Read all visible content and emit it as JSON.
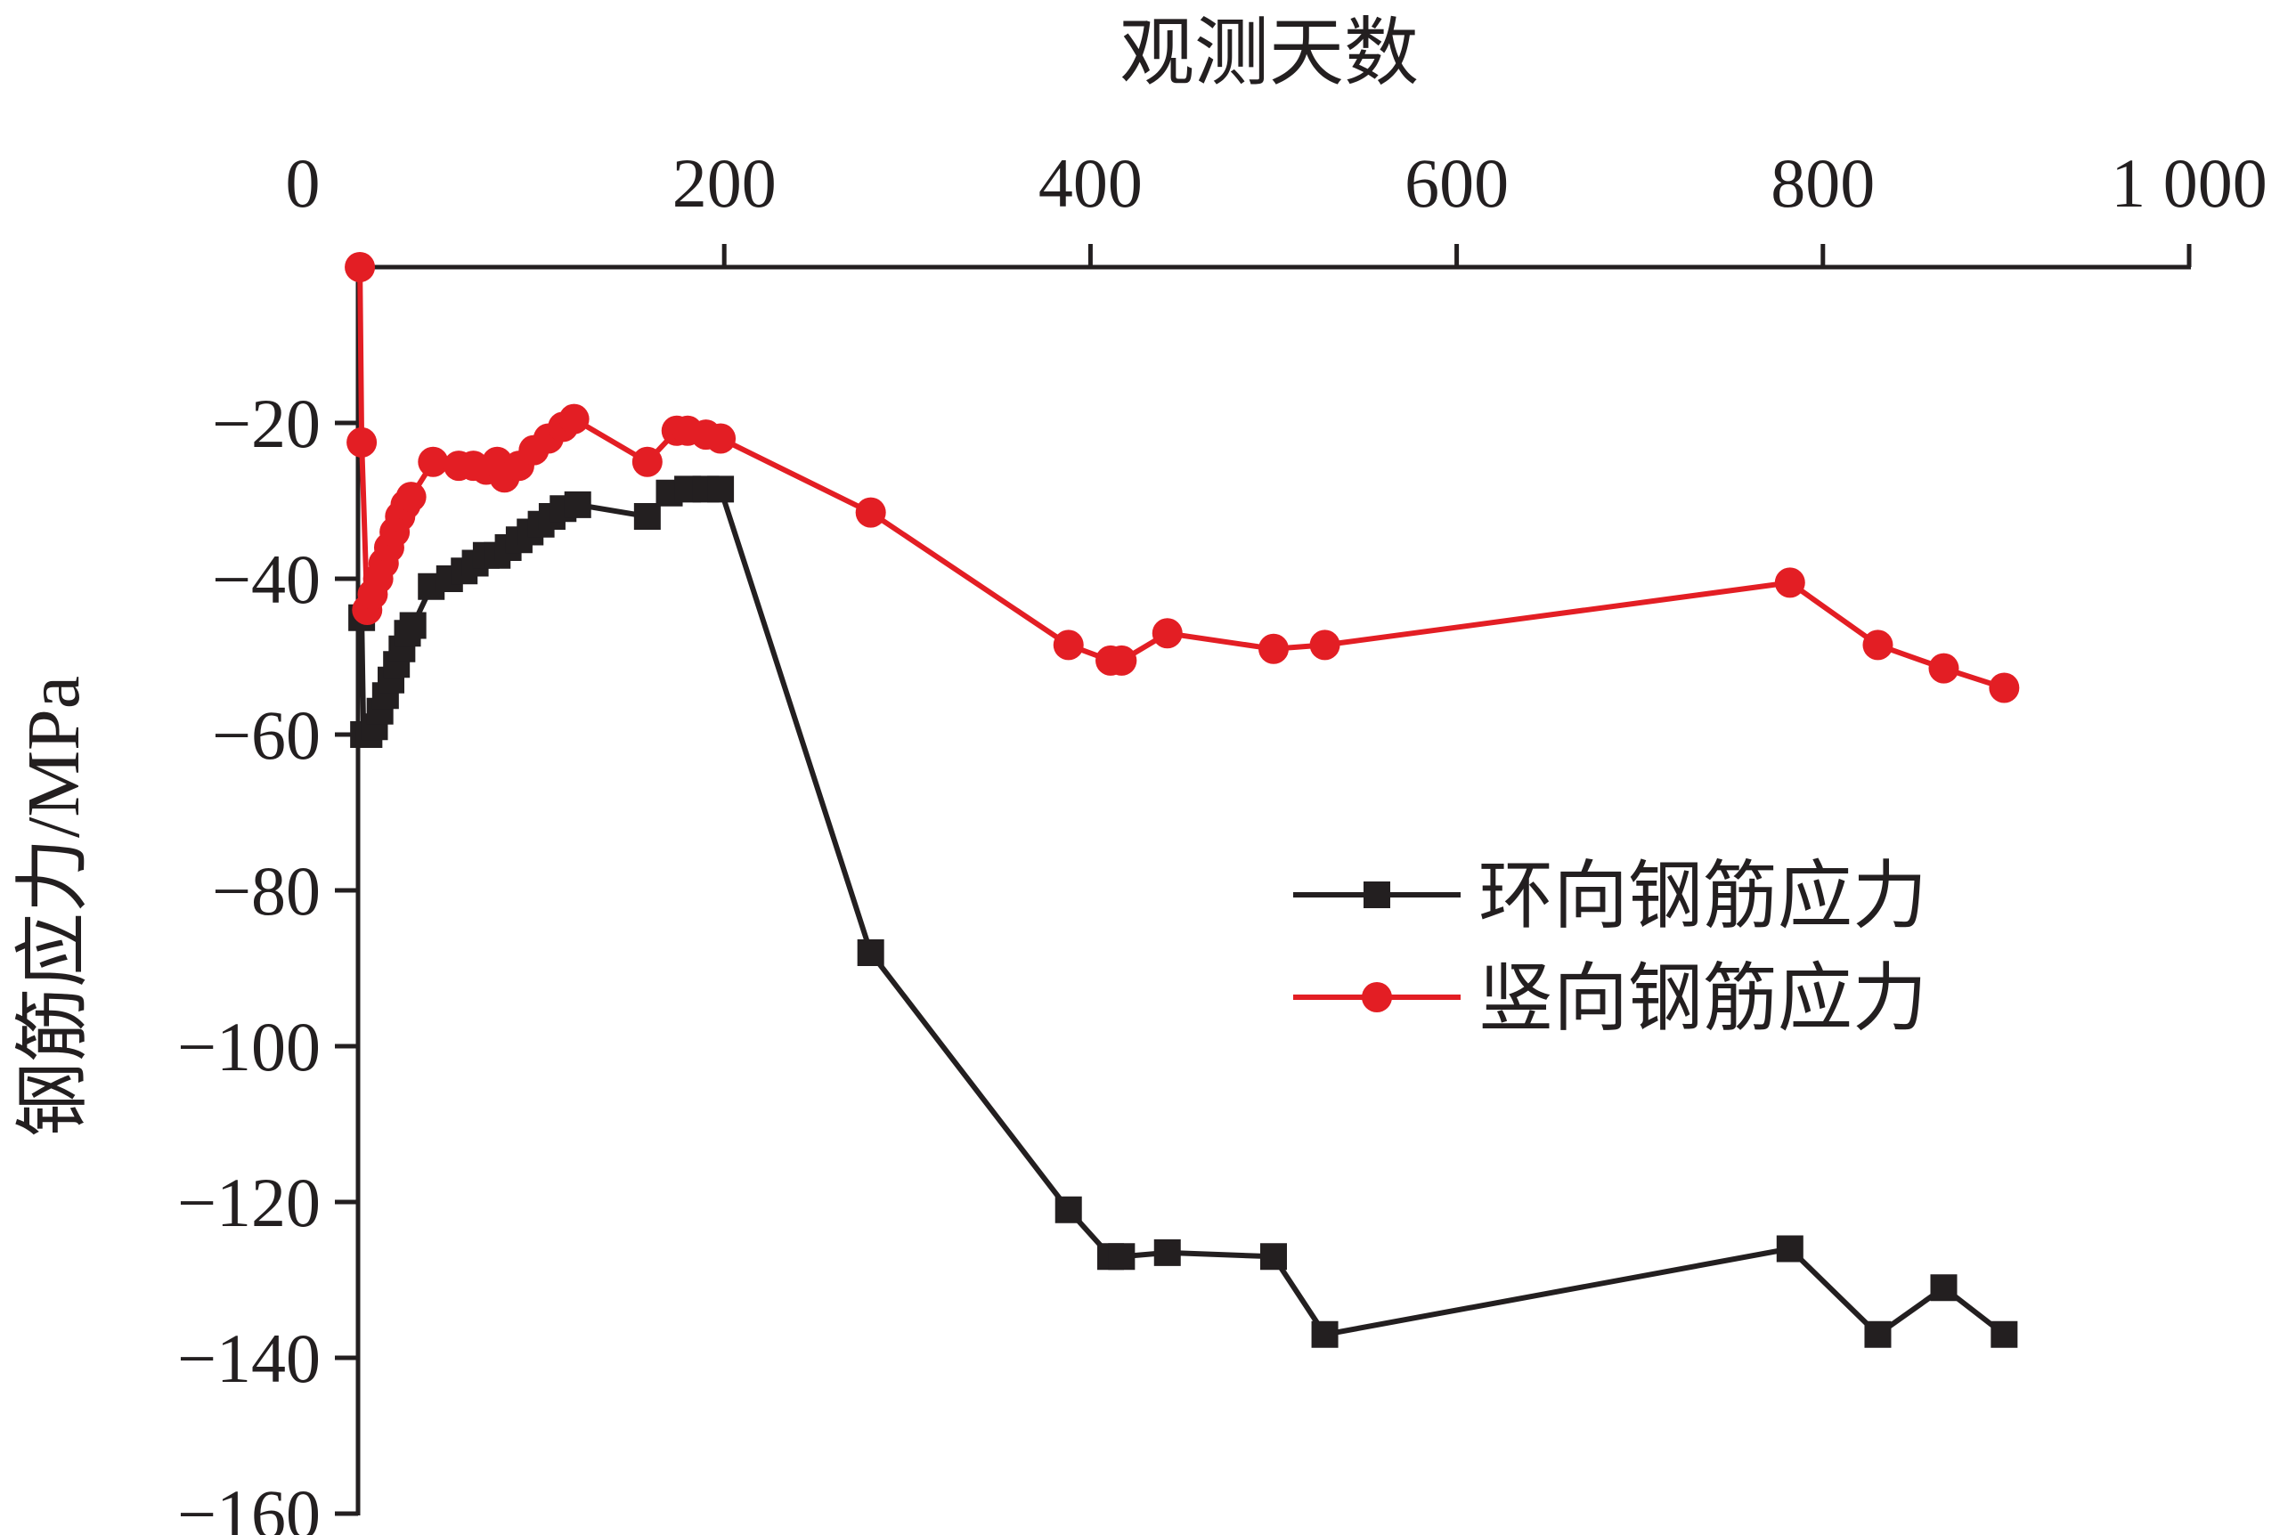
{
  "chart_data": {
    "type": "line",
    "title": "",
    "xlabel": "观测天数",
    "ylabel": "钢筋应力/MPa",
    "x_axis_position": "top",
    "xlim": [
      0,
      1000
    ],
    "ylim": [
      -160,
      0
    ],
    "x_ticks": [
      0,
      200,
      400,
      600,
      800,
      1000
    ],
    "x_tick_labels": [
      "0",
      "200",
      "400",
      "600",
      "800",
      "1 000"
    ],
    "y_ticks": [
      -20,
      -40,
      -60,
      -80,
      -100,
      -120,
      -140,
      -160
    ],
    "y_tick_labels": [
      "−20",
      "−40",
      "−60",
      "−80",
      "−100",
      "−120",
      "−140",
      "−160"
    ],
    "grid": false,
    "legend_position": "center-right",
    "series": [
      {
        "name": "环向钢筋应力",
        "color": "#231f20",
        "marker": "square",
        "points": [
          [
            2,
            -45
          ],
          [
            3,
            -60
          ],
          [
            6,
            -60
          ],
          [
            9,
            -59
          ],
          [
            12,
            -57
          ],
          [
            15,
            -55
          ],
          [
            18,
            -53
          ],
          [
            21,
            -51
          ],
          [
            24,
            -49
          ],
          [
            27,
            -47
          ],
          [
            30,
            -46
          ],
          [
            40,
            -41
          ],
          [
            50,
            -40
          ],
          [
            58,
            -39
          ],
          [
            64,
            -38
          ],
          [
            70,
            -37
          ],
          [
            76,
            -37
          ],
          [
            82,
            -36
          ],
          [
            88,
            -35
          ],
          [
            94,
            -34
          ],
          [
            100,
            -33
          ],
          [
            106,
            -32
          ],
          [
            112,
            -31
          ],
          [
            120,
            -30.5
          ],
          [
            158,
            -32
          ],
          [
            170,
            -29
          ],
          [
            180,
            -28.5
          ],
          [
            190,
            -28.5
          ],
          [
            198,
            -28.5
          ],
          [
            280,
            -88
          ],
          [
            388,
            -121
          ],
          [
            411,
            -127
          ],
          [
            417,
            -127
          ],
          [
            442,
            -126.5
          ],
          [
            500,
            -127
          ],
          [
            528,
            -137
          ],
          [
            782,
            -126
          ],
          [
            830,
            -137
          ],
          [
            866,
            -131
          ],
          [
            899,
            -137
          ]
        ]
      },
      {
        "name": "竖向钢筋应力",
        "color": "#e31e24",
        "marker": "circle",
        "points": [
          [
            1,
            0
          ],
          [
            2,
            -22.5
          ],
          [
            5,
            -44
          ],
          [
            8,
            -42
          ],
          [
            11,
            -40
          ],
          [
            14,
            -38
          ],
          [
            17,
            -36
          ],
          [
            20,
            -34
          ],
          [
            23,
            -32
          ],
          [
            26,
            -30.5
          ],
          [
            29,
            -29.5
          ],
          [
            41,
            -25
          ],
          [
            55,
            -25.5
          ],
          [
            63,
            -25.5
          ],
          [
            70,
            -26
          ],
          [
            76,
            -25
          ],
          [
            80,
            -27
          ],
          [
            88,
            -25.5
          ],
          [
            96,
            -23.5
          ],
          [
            104,
            -22
          ],
          [
            112,
            -20.5
          ],
          [
            118,
            -19.5
          ],
          [
            158,
            -25
          ],
          [
            174,
            -21
          ],
          [
            180,
            -21
          ],
          [
            190,
            -21.5
          ],
          [
            198,
            -22
          ],
          [
            280,
            -31.5
          ],
          [
            388,
            -48.5
          ],
          [
            411,
            -50.5
          ],
          [
            417,
            -50.5
          ],
          [
            442,
            -47
          ],
          [
            500,
            -49
          ],
          [
            528,
            -48.5
          ],
          [
            782,
            -40.5
          ],
          [
            830,
            -48.5
          ],
          [
            866,
            -51.5
          ],
          [
            899,
            -54
          ]
        ]
      }
    ]
  }
}
